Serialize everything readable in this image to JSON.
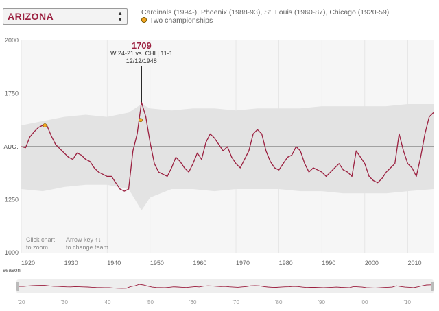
{
  "team_selector": {
    "value": "ARIZONA",
    "arrows_icon": "updown-arrows-icon"
  },
  "header": {
    "history": "Cardinals (1994-), Phoenix (1988-93), St. Louis (1960-87), Chicago (1920-59)",
    "legend_championships": "Two championships"
  },
  "hints": {
    "click_zoom_line1": "Click chart",
    "click_zoom_line2": "to zoom",
    "arrow_key_line1": "Arrow key ↑↓",
    "arrow_key_line2": "to change team"
  },
  "annotation": {
    "value": "1709",
    "line1": "W 24-21 vs. CHI | 11-1",
    "line2": "12/12/1948"
  },
  "colors": {
    "team": "#9b1f3f",
    "band": "#e3e3e3",
    "championship": "#f5a623",
    "plot_bg": "#f6f6f6"
  },
  "chart_data": {
    "type": "line",
    "xlabel": "season",
    "ylabel": "",
    "xlim": [
      1920,
      2016
    ],
    "ylim": [
      1000,
      2000
    ],
    "average_label": "AUG.",
    "average_value": 1500,
    "y_ticks": [
      "2000",
      "1750",
      "1250",
      "1000"
    ],
    "x_ticks": [
      "1920",
      "1930",
      "1940",
      "1950",
      "1960",
      "1970",
      "1980",
      "1990",
      "2000",
      "2010"
    ],
    "overview_ticks": [
      "'20",
      "'30",
      "'40",
      "'50",
      "'60",
      "'70",
      "'80",
      "'90",
      "'00",
      "'10"
    ],
    "series": [
      {
        "name": "Arizona",
        "x": [
          1920,
          1921,
          1922,
          1923,
          1924,
          1925,
          1926,
          1927,
          1928,
          1929,
          1930,
          1931,
          1932,
          1933,
          1934,
          1935,
          1936,
          1937,
          1938,
          1939,
          1940,
          1941,
          1942,
          1943,
          1944,
          1945,
          1946,
          1947,
          1948,
          1949,
          1950,
          1951,
          1952,
          1953,
          1954,
          1955,
          1956,
          1957,
          1958,
          1959,
          1960,
          1961,
          1962,
          1963,
          1964,
          1965,
          1966,
          1967,
          1968,
          1969,
          1970,
          1971,
          1972,
          1973,
          1974,
          1975,
          1976,
          1977,
          1978,
          1979,
          1980,
          1981,
          1982,
          1983,
          1984,
          1985,
          1986,
          1987,
          1988,
          1989,
          1990,
          1991,
          1992,
          1993,
          1994,
          1995,
          1996,
          1997,
          1998,
          1999,
          2000,
          2001,
          2002,
          2003,
          2004,
          2005,
          2006,
          2007,
          2008,
          2009,
          2010,
          2011,
          2012,
          2013,
          2014,
          2015,
          2016
        ],
        "y": [
          1500,
          1495,
          1545,
          1570,
          1590,
          1600,
          1598,
          1550,
          1510,
          1490,
          1470,
          1450,
          1440,
          1470,
          1460,
          1440,
          1430,
          1400,
          1380,
          1370,
          1360,
          1360,
          1330,
          1300,
          1290,
          1300,
          1480,
          1560,
          1709,
          1640,
          1520,
          1420,
          1380,
          1370,
          1360,
          1400,
          1450,
          1430,
          1400,
          1380,
          1420,
          1470,
          1440,
          1520,
          1560,
          1540,
          1510,
          1480,
          1500,
          1450,
          1420,
          1400,
          1440,
          1480,
          1560,
          1580,
          1560,
          1480,
          1430,
          1400,
          1390,
          1420,
          1450,
          1460,
          1500,
          1480,
          1420,
          1380,
          1400,
          1390,
          1380,
          1360,
          1380,
          1400,
          1420,
          1390,
          1380,
          1360,
          1480,
          1450,
          1420,
          1360,
          1340,
          1330,
          1350,
          1380,
          1400,
          1420,
          1560,
          1480,
          1420,
          1400,
          1360,
          1450,
          1560,
          1640,
          1660
        ]
      }
    ],
    "championships": [
      {
        "x": 1925.5,
        "y": 1600
      },
      {
        "x": 1947.8,
        "y": 1625
      }
    ],
    "band": {
      "x": [
        1920,
        1925,
        1930,
        1935,
        1940,
        1945,
        1948,
        1950,
        1955,
        1960,
        1965,
        1970,
        1975,
        1980,
        1985,
        1990,
        1995,
        2000,
        2005,
        2010,
        2016
      ],
      "upper": [
        1600,
        1620,
        1640,
        1650,
        1640,
        1660,
        1700,
        1680,
        1670,
        1680,
        1680,
        1670,
        1680,
        1680,
        1680,
        1690,
        1690,
        1690,
        1690,
        1700,
        1700
      ],
      "lower": [
        1300,
        1290,
        1310,
        1320,
        1320,
        1300,
        1200,
        1260,
        1300,
        1300,
        1290,
        1300,
        1300,
        1300,
        1290,
        1290,
        1280,
        1280,
        1280,
        1290,
        1300
      ]
    }
  }
}
